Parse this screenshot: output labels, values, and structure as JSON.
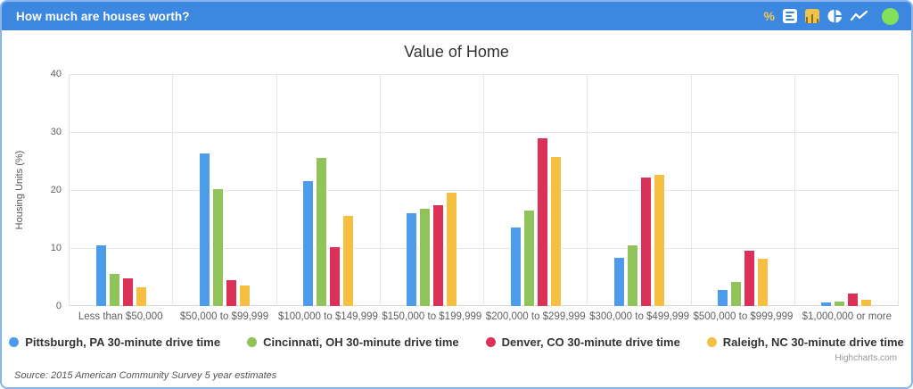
{
  "header": {
    "title": "How much are houses worth?",
    "icons": {
      "percent_label": "%",
      "status_color": "#82e05a",
      "active_bg": "#efc24b"
    }
  },
  "chart_data": {
    "type": "bar",
    "title": "Value of Home",
    "xlabel": "",
    "ylabel": "Housing Units (%)",
    "ylim": [
      0,
      40
    ],
    "yticks": [
      0,
      10,
      20,
      30,
      40
    ],
    "grid": true,
    "legend_position": "bottom",
    "categories": [
      "Less than $50,000",
      "$50,000 to $99,999",
      "$100,000 to $149,999",
      "$150,000 to $199,999",
      "$200,000 to $299,999",
      "$300,000 to $499,999",
      "$500,000 to $999,999",
      "$1,000,000 or more"
    ],
    "series": [
      {
        "name": "Pittsburgh, PA 30-minute drive time",
        "color": "#4d9ceb",
        "values": [
          10.5,
          26.3,
          21.5,
          16.0,
          13.5,
          8.3,
          2.8,
          0.6
        ]
      },
      {
        "name": "Cincinnati, OH 30-minute drive time",
        "color": "#90c35a",
        "values": [
          5.5,
          20.1,
          25.6,
          16.8,
          16.4,
          10.4,
          4.2,
          0.8
        ]
      },
      {
        "name": "Denver, CO 30-minute drive time",
        "color": "#db3159",
        "values": [
          4.7,
          4.4,
          10.2,
          17.4,
          29.0,
          22.1,
          9.5,
          2.2
        ]
      },
      {
        "name": "Raleigh, NC 30-minute drive time",
        "color": "#f5c042",
        "values": [
          3.3,
          3.6,
          15.5,
          19.5,
          25.7,
          22.6,
          8.1,
          1.1
        ]
      }
    ]
  },
  "credit": "Highcharts.com",
  "footer": {
    "source": "Source: 2015 American Community Survey 5 year estimates"
  }
}
